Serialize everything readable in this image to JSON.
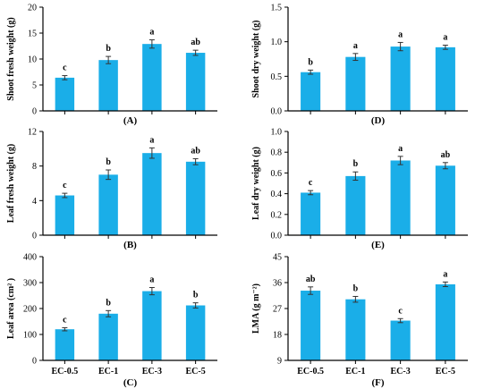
{
  "colors": {
    "bar": "#1aaee8",
    "axis": "#000000",
    "error": "#333333"
  },
  "chart_data": [
    {
      "type": "bar",
      "panel_label": "(A)",
      "ylabel": "Shoot fresh weight (g)",
      "categories": [
        "EC-0.5",
        "EC-1",
        "EC-3",
        "EC-5"
      ],
      "values": [
        6.4,
        9.8,
        12.9,
        11.2
      ],
      "errors": [
        0.4,
        0.7,
        0.8,
        0.5
      ],
      "letters": [
        "c",
        "b",
        "a",
        "ab"
      ],
      "ylim": [
        0,
        20
      ],
      "yticks": [
        "0",
        "5",
        "10",
        "15",
        "20"
      ],
      "show_xticklabels": false
    },
    {
      "type": "bar",
      "panel_label": "(D)",
      "ylabel": "Shoot dry weight (g)",
      "categories": [
        "EC-0.5",
        "EC-1",
        "EC-3",
        "EC-5"
      ],
      "values": [
        0.56,
        0.78,
        0.93,
        0.92
      ],
      "errors": [
        0.03,
        0.05,
        0.06,
        0.03
      ],
      "letters": [
        "b",
        "a",
        "a",
        "a"
      ],
      "ylim": [
        0,
        1.5
      ],
      "yticks": [
        "0.0",
        "0.5",
        "1.0",
        "1.5"
      ],
      "show_xticklabels": false
    },
    {
      "type": "bar",
      "panel_label": "(B)",
      "ylabel": "Leaf fresh weight (g)",
      "categories": [
        "EC-0.5",
        "EC-1",
        "EC-3",
        "EC-5"
      ],
      "values": [
        4.6,
        7.0,
        9.5,
        8.5
      ],
      "errors": [
        0.25,
        0.55,
        0.6,
        0.35
      ],
      "letters": [
        "c",
        "b",
        "a",
        "ab"
      ],
      "ylim": [
        0,
        12
      ],
      "yticks": [
        "0",
        "4",
        "8",
        "12"
      ],
      "show_xticklabels": false
    },
    {
      "type": "bar",
      "panel_label": "(E)",
      "ylabel": "Leaf dry weight (g)",
      "categories": [
        "EC-0.5",
        "EC-1",
        "EC-3",
        "EC-5"
      ],
      "values": [
        0.41,
        0.57,
        0.72,
        0.67
      ],
      "errors": [
        0.02,
        0.04,
        0.04,
        0.03
      ],
      "letters": [
        "c",
        "b",
        "a",
        "ab"
      ],
      "ylim": [
        0,
        1.0
      ],
      "yticks": [
        "0.0",
        "0.2",
        "0.4",
        "0.6",
        "0.8",
        "1.0"
      ],
      "show_xticklabels": false
    },
    {
      "type": "bar",
      "panel_label": "(C)",
      "ylabel": "Leaf area (cm² )",
      "categories": [
        "EC-0.5",
        "EC-1",
        "EC-3",
        "EC-5"
      ],
      "values": [
        120,
        180,
        267,
        212
      ],
      "errors": [
        6,
        12,
        14,
        10
      ],
      "letters": [
        "c",
        "b",
        "a",
        "b"
      ],
      "ylim": [
        0,
        400
      ],
      "yticks": [
        "0",
        "100",
        "200",
        "300",
        "400"
      ],
      "show_xticklabels": true
    },
    {
      "type": "bar",
      "panel_label": "(F)",
      "ylabel": "LMA (g m⁻²)",
      "categories": [
        "EC-0.5",
        "EC-1",
        "EC-3",
        "EC-5"
      ],
      "values": [
        33.2,
        30.2,
        22.8,
        35.4
      ],
      "errors": [
        1.3,
        1.0,
        0.7,
        0.8
      ],
      "letters": [
        "ab",
        "b",
        "c",
        "a"
      ],
      "ylim": [
        9,
        45
      ],
      "yticks": [
        "9",
        "18",
        "27",
        "36",
        "45"
      ],
      "show_xticklabels": true
    }
  ]
}
